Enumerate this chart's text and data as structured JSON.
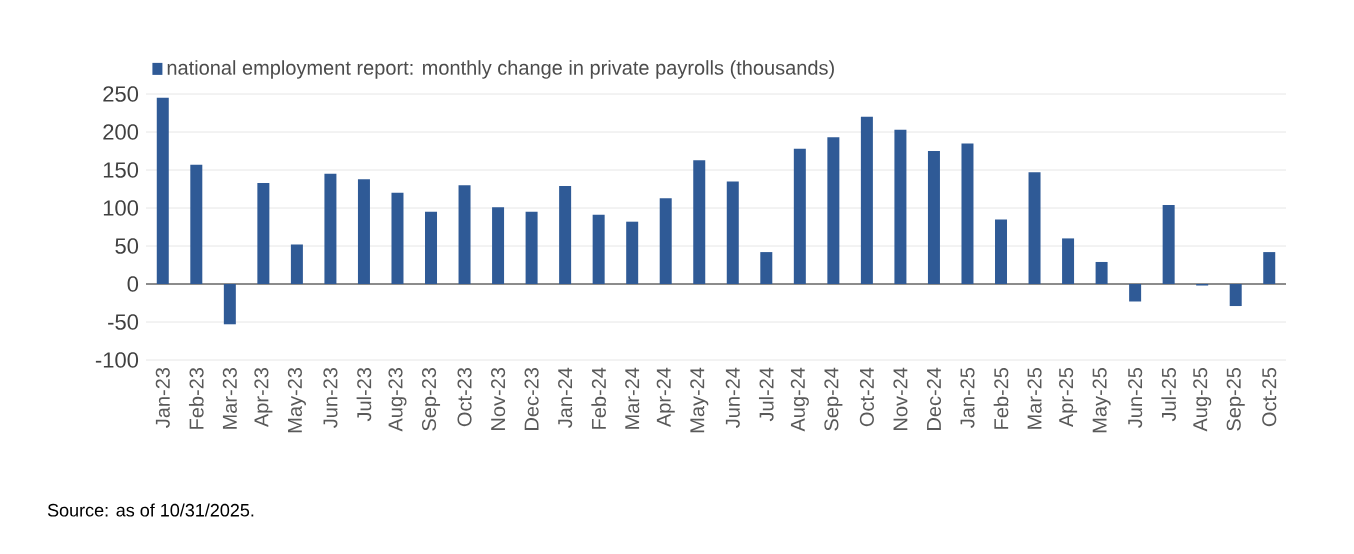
{
  "chart_data": {
    "type": "bar",
    "categories": [
      "Jan-23",
      "Feb-23",
      "Mar-23",
      "Apr-23",
      "May-23",
      "Jun-23",
      "Jul-23",
      "Aug-23",
      "Sep-23",
      "Oct-23",
      "Nov-23",
      "Dec-23",
      "Jan-24",
      "Feb-24",
      "Mar-24",
      "Apr-24",
      "May-24",
      "Jun-24",
      "Jul-24",
      "Aug-24",
      "Sep-24",
      "Oct-24",
      "Nov-24",
      "Dec-24",
      "Jan-25",
      "Feb-25",
      "Mar-25",
      "Apr-25",
      "May-25",
      "Jun-25",
      "Jul-25",
      "Aug-25",
      "Sep-25",
      "Oct-25"
    ],
    "series": [
      {
        "name": "national employment report: monthly change in private payrolls (thousands)",
        "color": "#2f5a96",
        "values": [
          245,
          157,
          -53,
          133,
          52,
          145,
          138,
          120,
          95,
          130,
          101,
          95,
          129,
          91,
          82,
          113,
          163,
          135,
          42,
          178,
          193,
          220,
          203,
          175,
          185,
          85,
          147,
          60,
          29,
          -23,
          104,
          -2,
          -29,
          42
        ]
      }
    ],
    "ylim": [
      -100,
      250
    ],
    "yticks": [
      -100,
      -50,
      0,
      50,
      100,
      150,
      200,
      250
    ],
    "grid": "y",
    "legend": "top left",
    "annotations": [
      "Source: as of 10/31/2025."
    ]
  }
}
